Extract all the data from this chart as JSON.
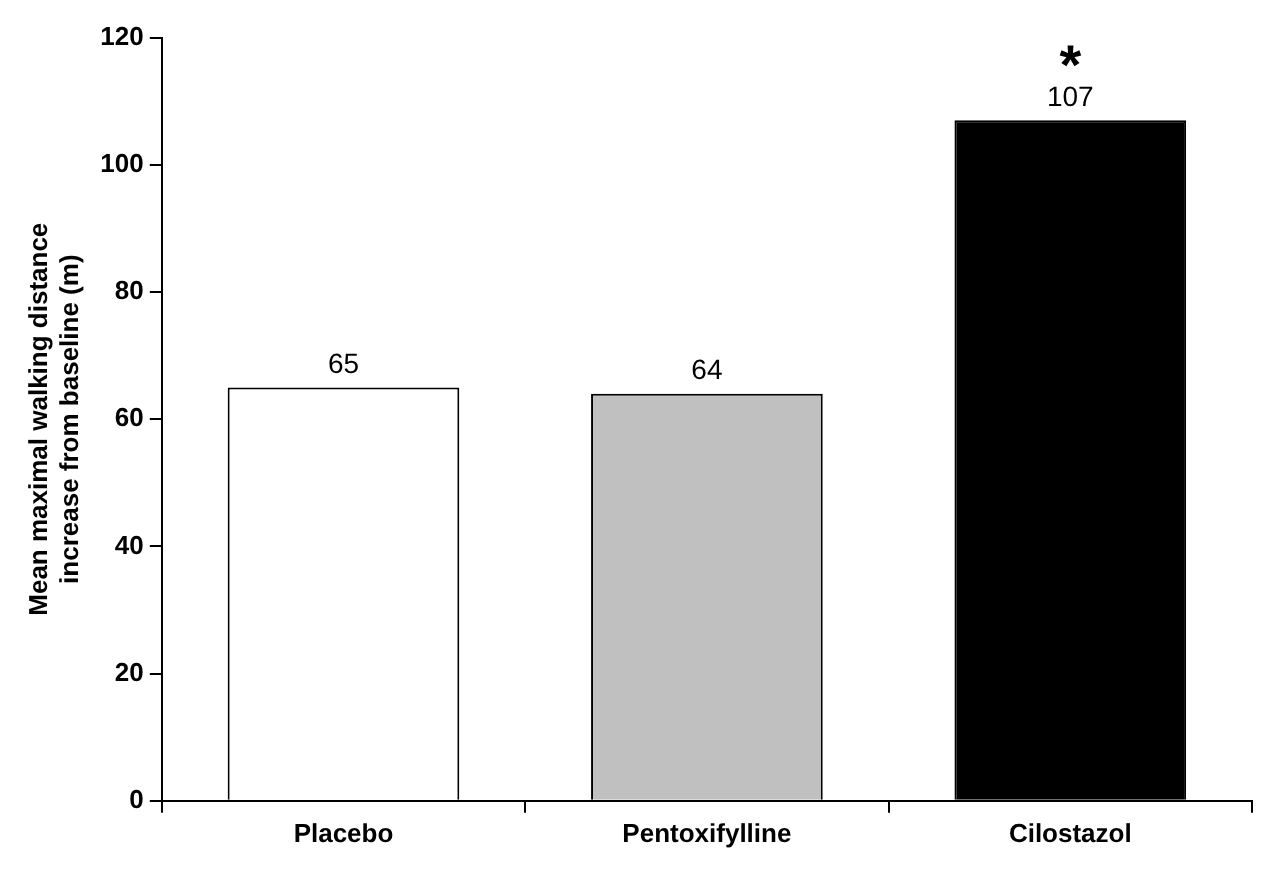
{
  "chart_data": {
    "type": "bar",
    "ylabel": "Mean maximal walking distance\nincrease from baseline (m)",
    "categories": [
      "Placebo",
      "Pentoxifylline",
      "Cilostazol"
    ],
    "values": [
      65,
      64,
      107
    ],
    "colors": [
      "#ffffff",
      "#c0c0c0",
      "#000000"
    ],
    "ylim": [
      0,
      120
    ],
    "yticks": [
      0,
      20,
      40,
      60,
      80,
      100,
      120
    ],
    "grid": false,
    "legend": false,
    "data_labels": true,
    "annotations": [
      {
        "text": "*",
        "x": "Cilostazol",
        "y": 107
      }
    ]
  }
}
